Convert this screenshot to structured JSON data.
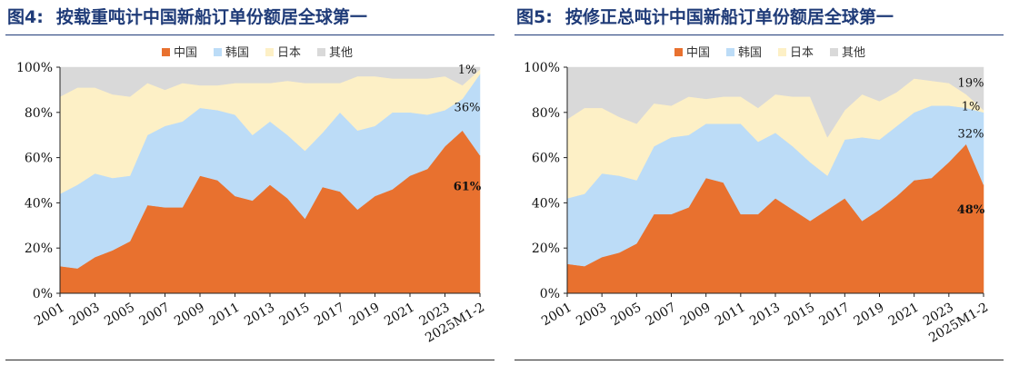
{
  "colors": {
    "china": "#e8712f",
    "korea": "#bcdcf7",
    "japan": "#fdf0c6",
    "other": "#d9d9d9",
    "title": "#1f3b78"
  },
  "chart_data": [
    {
      "type": "area",
      "figure_label": "图4:",
      "title": "按载重吨计中国新船订单份额居全球第一",
      "stacked": true,
      "ylim": [
        0,
        100
      ],
      "yticks": [
        "0%",
        "20%",
        "40%",
        "60%",
        "80%",
        "100%"
      ],
      "x": [
        "2001",
        "2002",
        "2003",
        "2004",
        "2005",
        "2006",
        "2007",
        "2008",
        "2009",
        "2010",
        "2011",
        "2012",
        "2013",
        "2014",
        "2015",
        "2016",
        "2017",
        "2018",
        "2019",
        "2020",
        "2021",
        "2022",
        "2023",
        "2024",
        "2025M1-2"
      ],
      "xtick_labels": [
        "2001",
        "2003",
        "2005",
        "2007",
        "2009",
        "2011",
        "2013",
        "2015",
        "2017",
        "2019",
        "2021",
        "2023",
        "2025M1-2"
      ],
      "legend": [
        "中国",
        "韩国",
        "日本",
        "其他"
      ],
      "series": [
        {
          "name": "中国",
          "values": [
            12,
            11,
            16,
            19,
            23,
            39,
            38,
            38,
            52,
            50,
            43,
            41,
            48,
            42,
            33,
            47,
            45,
            37,
            43,
            46,
            52,
            55,
            65,
            72,
            61
          ]
        },
        {
          "name": "韩国",
          "values": [
            32,
            37,
            37,
            32,
            29,
            31,
            36,
            38,
            30,
            31,
            36,
            29,
            28,
            28,
            30,
            24,
            35,
            35,
            31,
            34,
            28,
            24,
            16,
            14,
            36
          ]
        },
        {
          "name": "日本",
          "values": [
            43,
            43,
            38,
            37,
            35,
            23,
            16,
            17,
            10,
            11,
            14,
            23,
            17,
            24,
            30,
            22,
            13,
            24,
            22,
            15,
            15,
            16,
            15,
            6,
            2
          ]
        },
        {
          "name": "其他",
          "values": [
            13,
            9,
            9,
            12,
            13,
            7,
            10,
            7,
            8,
            8,
            7,
            7,
            7,
            6,
            7,
            7,
            7,
            4,
            4,
            5,
            5,
            5,
            4,
            8,
            1
          ]
        }
      ],
      "annotations": [
        "1%",
        "36%",
        "61%"
      ]
    },
    {
      "type": "area",
      "figure_label": "图5:",
      "title": "按修正总吨计中国新船订单份额居全球第一",
      "stacked": true,
      "ylim": [
        0,
        100
      ],
      "yticks": [
        "0%",
        "20%",
        "40%",
        "60%",
        "80%",
        "100%"
      ],
      "x": [
        "2001",
        "2002",
        "2003",
        "2004",
        "2005",
        "2006",
        "2007",
        "2008",
        "2009",
        "2010",
        "2011",
        "2012",
        "2013",
        "2014",
        "2015",
        "2016",
        "2017",
        "2018",
        "2019",
        "2020",
        "2021",
        "2022",
        "2023",
        "2024",
        "2025M1-2"
      ],
      "xtick_labels": [
        "2001",
        "2003",
        "2005",
        "2007",
        "2009",
        "2011",
        "2013",
        "2015",
        "2017",
        "2019",
        "2021",
        "2023",
        "2025M1-2"
      ],
      "legend": [
        "中国",
        "韩国",
        "日本",
        "其他"
      ],
      "series": [
        {
          "name": "中国",
          "values": [
            13,
            12,
            16,
            18,
            22,
            35,
            35,
            38,
            51,
            49,
            35,
            35,
            42,
            37,
            32,
            37,
            42,
            32,
            37,
            43,
            50,
            51,
            58,
            66,
            48
          ]
        },
        {
          "name": "韩国",
          "values": [
            29,
            32,
            37,
            34,
            28,
            30,
            34,
            32,
            24,
            26,
            40,
            32,
            29,
            28,
            26,
            15,
            26,
            37,
            31,
            31,
            30,
            32,
            25,
            16,
            32
          ]
        },
        {
          "name": "日本",
          "values": [
            35,
            38,
            29,
            26,
            25,
            19,
            14,
            17,
            11,
            12,
            12,
            15,
            17,
            22,
            29,
            17,
            13,
            19,
            17,
            15,
            15,
            11,
            10,
            6,
            1
          ]
        },
        {
          "name": "其他",
          "values": [
            23,
            18,
            18,
            22,
            25,
            16,
            17,
            13,
            14,
            13,
            13,
            18,
            12,
            13,
            13,
            31,
            19,
            12,
            15,
            11,
            5,
            6,
            7,
            12,
            19
          ]
        }
      ],
      "annotations": [
        "19%",
        "1%",
        "32%",
        "48%"
      ]
    }
  ]
}
